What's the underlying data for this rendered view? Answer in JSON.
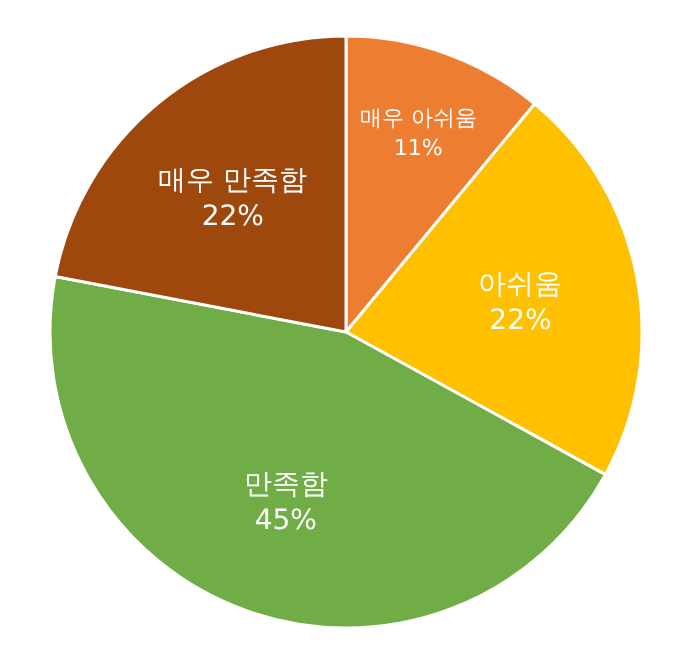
{
  "chart_data": {
    "type": "pie",
    "categories": [
      "매우 아쉬움",
      "아쉬움",
      "만족함",
      "매우 만족함"
    ],
    "values": [
      11,
      22,
      45,
      22
    ],
    "value_labels": [
      "11%",
      "22%",
      "45%",
      "22%"
    ],
    "colors": [
      "#ed7d31",
      "#ffc000",
      "#70ad47",
      "#9e480e"
    ]
  }
}
